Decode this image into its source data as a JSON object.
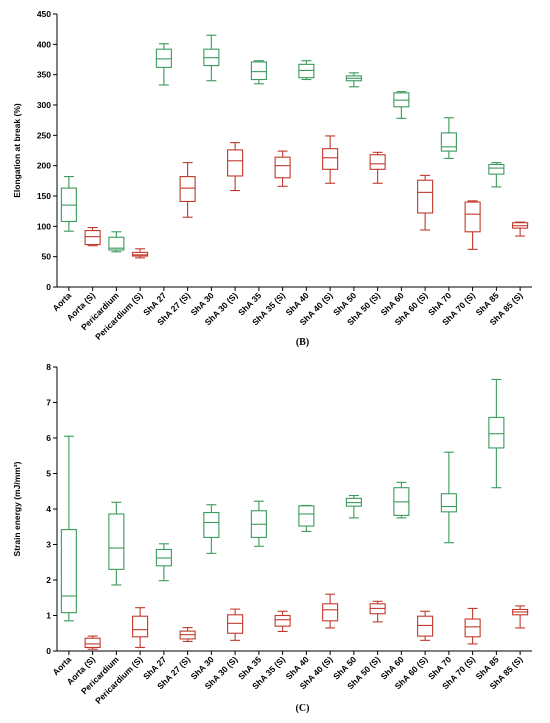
{
  "colors": {
    "native": "#3a9a5b",
    "stabilized": "#c0392b",
    "axis": "#000000"
  },
  "chart_data": [
    {
      "type": "box",
      "panel_label": "(B)",
      "title": "",
      "xlabel": "",
      "ylabel": "Elongation at break (%)",
      "ylim": [
        0,
        450
      ],
      "yticks": [
        0,
        50,
        100,
        150,
        200,
        250,
        300,
        350,
        400,
        450
      ],
      "categories": [
        "Aorta",
        "Aorta (S)",
        "Pericardium",
        "Pericardium (S)",
        "ShA 27",
        "ShA 27 (S)",
        "ShA 30",
        "ShA 30 (S)",
        "ShA 35",
        "ShA 35 (S)",
        "ShA 40",
        "ShA 40 (S)",
        "ShA 50",
        "ShA 50 (S)",
        "ShA 60",
        "ShA 60 (S)",
        "ShA 70",
        "ShA 70 (S)",
        "ShA 85",
        "ShA 85 (S)"
      ],
      "boxes": [
        {
          "min": 92,
          "q1": 108,
          "median": 135,
          "q3": 163,
          "max": 182,
          "color": "native"
        },
        {
          "min": 68,
          "q1": 70,
          "median": 83,
          "q3": 93,
          "max": 98,
          "color": "stabilized"
        },
        {
          "min": 58,
          "q1": 61,
          "median": 64,
          "q3": 82,
          "max": 91,
          "color": "native"
        },
        {
          "min": 48,
          "q1": 51,
          "median": 53,
          "q3": 57,
          "max": 63,
          "color": "stabilized"
        },
        {
          "min": 333,
          "q1": 362,
          "median": 376,
          "q3": 392,
          "max": 401,
          "color": "native"
        },
        {
          "min": 115,
          "q1": 141,
          "median": 163,
          "q3": 182,
          "max": 205,
          "color": "stabilized"
        },
        {
          "min": 340,
          "q1": 365,
          "median": 378,
          "q3": 392,
          "max": 415,
          "color": "native"
        },
        {
          "min": 159,
          "q1": 183,
          "median": 208,
          "q3": 226,
          "max": 238,
          "color": "stabilized"
        },
        {
          "min": 335,
          "q1": 342,
          "median": 355,
          "q3": 371,
          "max": 373,
          "color": "native"
        },
        {
          "min": 166,
          "q1": 180,
          "median": 200,
          "q3": 214,
          "max": 224,
          "color": "stabilized"
        },
        {
          "min": 342,
          "q1": 345,
          "median": 357,
          "q3": 367,
          "max": 373,
          "color": "native"
        },
        {
          "min": 171,
          "q1": 194,
          "median": 213,
          "q3": 228,
          "max": 249,
          "color": "stabilized"
        },
        {
          "min": 330,
          "q1": 340,
          "median": 344,
          "q3": 348,
          "max": 353,
          "color": "native"
        },
        {
          "min": 171,
          "q1": 194,
          "median": 203,
          "q3": 218,
          "max": 222,
          "color": "stabilized"
        },
        {
          "min": 278,
          "q1": 297,
          "median": 308,
          "q3": 320,
          "max": 322,
          "color": "native"
        },
        {
          "min": 94,
          "q1": 122,
          "median": 156,
          "q3": 176,
          "max": 184,
          "color": "stabilized"
        },
        {
          "min": 212,
          "q1": 224,
          "median": 231,
          "q3": 254,
          "max": 279,
          "color": "native"
        },
        {
          "min": 62,
          "q1": 91,
          "median": 120,
          "q3": 140,
          "max": 142,
          "color": "stabilized"
        },
        {
          "min": 165,
          "q1": 186,
          "median": 196,
          "q3": 202,
          "max": 205,
          "color": "native"
        },
        {
          "min": 84,
          "q1": 97,
          "median": 101,
          "q3": 106,
          "max": 107,
          "color": "stabilized"
        }
      ]
    },
    {
      "type": "box",
      "panel_label": "(C)",
      "title": "",
      "xlabel": "",
      "ylabel": "Strain energy (mJ/mm³)",
      "ylim": [
        0,
        8
      ],
      "yticks": [
        0,
        1,
        2,
        3,
        4,
        5,
        6,
        7,
        8
      ],
      "categories": [
        "Aorta",
        "Aorta (S)",
        "Pericardium",
        "Pericardium (S)",
        "ShA 27",
        "ShA 27 (S)",
        "ShA 30",
        "ShA 30 (S)",
        "ShA 35",
        "ShA 35 (S)",
        "ShA 40",
        "ShA 40 (S)",
        "ShA 50",
        "ShA 50 (S)",
        "ShA 60",
        "ShA 60 (S)",
        "ShA 70",
        "ShA 70 (S)",
        "ShA 85",
        "ShA 85 (S)"
      ],
      "boxes": [
        {
          "min": 0.85,
          "q1": 1.08,
          "median": 1.55,
          "q3": 3.42,
          "max": 6.05,
          "color": "native"
        },
        {
          "min": 0.05,
          "q1": 0.1,
          "median": 0.2,
          "q3": 0.36,
          "max": 0.42,
          "color": "stabilized"
        },
        {
          "min": 1.86,
          "q1": 2.3,
          "median": 2.9,
          "q3": 3.86,
          "max": 4.19,
          "color": "native"
        },
        {
          "min": 0.1,
          "q1": 0.4,
          "median": 0.6,
          "q3": 0.98,
          "max": 1.22,
          "color": "stabilized"
        },
        {
          "min": 1.98,
          "q1": 2.4,
          "median": 2.62,
          "q3": 2.86,
          "max": 3.02,
          "color": "native"
        },
        {
          "min": 0.27,
          "q1": 0.34,
          "median": 0.46,
          "q3": 0.56,
          "max": 0.66,
          "color": "stabilized"
        },
        {
          "min": 2.75,
          "q1": 3.2,
          "median": 3.62,
          "q3": 3.9,
          "max": 4.12,
          "color": "native"
        },
        {
          "min": 0.3,
          "q1": 0.5,
          "median": 0.78,
          "q3": 1.02,
          "max": 1.18,
          "color": "stabilized"
        },
        {
          "min": 2.95,
          "q1": 3.2,
          "median": 3.57,
          "q3": 3.95,
          "max": 4.22,
          "color": "native"
        },
        {
          "min": 0.55,
          "q1": 0.7,
          "median": 0.88,
          "q3": 1.0,
          "max": 1.12,
          "color": "stabilized"
        },
        {
          "min": 3.37,
          "q1": 3.52,
          "median": 3.86,
          "q3": 4.09,
          "max": 4.1,
          "color": "native"
        },
        {
          "min": 0.65,
          "q1": 0.85,
          "median": 1.16,
          "q3": 1.33,
          "max": 1.6,
          "color": "stabilized"
        },
        {
          "min": 3.75,
          "q1": 4.08,
          "median": 4.18,
          "q3": 4.3,
          "max": 4.38,
          "color": "native"
        },
        {
          "min": 0.82,
          "q1": 1.05,
          "median": 1.2,
          "q3": 1.33,
          "max": 1.4,
          "color": "stabilized"
        },
        {
          "min": 3.75,
          "q1": 3.82,
          "median": 4.2,
          "q3": 4.6,
          "max": 4.75,
          "color": "native"
        },
        {
          "min": 0.3,
          "q1": 0.42,
          "median": 0.72,
          "q3": 0.98,
          "max": 1.12,
          "color": "stabilized"
        },
        {
          "min": 3.05,
          "q1": 3.92,
          "median": 4.07,
          "q3": 4.43,
          "max": 5.6,
          "color": "native"
        },
        {
          "min": 0.2,
          "q1": 0.4,
          "median": 0.68,
          "q3": 0.9,
          "max": 1.2,
          "color": "stabilized"
        },
        {
          "min": 4.6,
          "q1": 5.72,
          "median": 6.12,
          "q3": 6.58,
          "max": 7.65,
          "color": "native"
        },
        {
          "min": 0.65,
          "q1": 1.02,
          "median": 1.1,
          "q3": 1.17,
          "max": 1.27,
          "color": "stabilized"
        }
      ]
    }
  ]
}
